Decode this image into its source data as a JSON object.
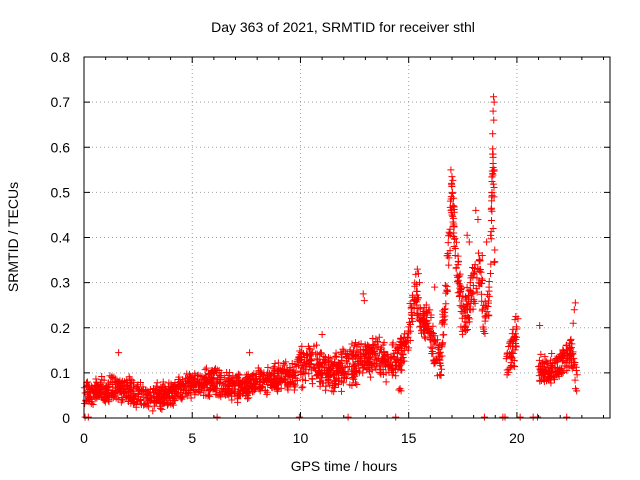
{
  "chart_data": {
    "type": "scatter",
    "title": "Day 363 of 2021, SRMTID for receiver sthl",
    "xlabel": "GPS time / hours",
    "ylabel": "SRMTID / TECUs",
    "xlim": [
      0,
      24.3
    ],
    "ylim": [
      0,
      0.8
    ],
    "xticks": [
      0,
      5,
      10,
      15,
      20
    ],
    "yticks": [
      0,
      0.1,
      0.2,
      0.3,
      0.4,
      0.5,
      0.6,
      0.7,
      0.8
    ],
    "xtick_labels": [
      "0",
      "5",
      "10",
      "15",
      "20"
    ],
    "ytick_labels": [
      "0",
      "0.1",
      "0.2",
      "0.3",
      "0.4",
      "0.5",
      "0.6",
      "0.7",
      "0.8"
    ],
    "grid": true,
    "marker": "plus",
    "color": "#ff0000",
    "series": [
      {
        "name": "SRMTID",
        "segments": [
          {
            "x": [
              0.0,
              1.0,
              2.0,
              3.0,
              4.0,
              5.0,
              6.0,
              7.0,
              8.0,
              9.0,
              9.8
            ],
            "y": [
              0.05,
              0.065,
              0.06,
              0.04,
              0.055,
              0.07,
              0.085,
              0.065,
              0.08,
              0.09,
              0.095
            ],
            "spread": 0.035
          },
          {
            "x": [
              9.8,
              10.5,
              11.0,
              11.5,
              12.0,
              12.5,
              13.0,
              13.5,
              14.0,
              14.5,
              15.0
            ],
            "y": [
              0.11,
              0.12,
              0.11,
              0.1,
              0.11,
              0.12,
              0.13,
              0.14,
              0.12,
              0.13,
              0.17
            ],
            "spread": 0.05
          },
          {
            "x": [
              15.0,
              15.3,
              15.6,
              15.9,
              16.2,
              16.5
            ],
            "y": [
              0.18,
              0.29,
              0.2,
              0.22,
              0.15,
              0.13
            ],
            "spread": 0.05
          },
          {
            "x": [
              16.5,
              16.9,
              17.0,
              17.2,
              17.5,
              17.8,
              18.0,
              18.3,
              18.5,
              18.7,
              18.8,
              18.9,
              19.0
            ],
            "y": [
              0.14,
              0.4,
              0.52,
              0.35,
              0.22,
              0.25,
              0.3,
              0.33,
              0.2,
              0.25,
              0.4,
              0.6,
              0.3
            ],
            "spread": 0.06
          },
          {
            "x": [
              19.5,
              19.8,
              20.0
            ],
            "y": [
              0.12,
              0.15,
              0.18
            ],
            "spread": 0.06
          },
          {
            "x": [
              21.0,
              21.5,
              22.0,
              22.5,
              22.8
            ],
            "y": [
              0.11,
              0.1,
              0.12,
              0.15,
              0.08
            ],
            "spread": 0.04
          }
        ],
        "highlights": [
          {
            "x": 18.92,
            "y": 0.712
          },
          {
            "x": 18.95,
            "y": 0.7
          },
          {
            "x": 18.9,
            "y": 0.68
          },
          {
            "x": 18.93,
            "y": 0.66
          },
          {
            "x": 18.88,
            "y": 0.63
          },
          {
            "x": 18.9,
            "y": 0.555
          },
          {
            "x": 18.95,
            "y": 0.55
          },
          {
            "x": 18.85,
            "y": 0.5
          },
          {
            "x": 18.9,
            "y": 0.42
          },
          {
            "x": 18.95,
            "y": 0.345
          },
          {
            "x": 16.95,
            "y": 0.55
          },
          {
            "x": 17.0,
            "y": 0.535
          },
          {
            "x": 16.98,
            "y": 0.52
          },
          {
            "x": 17.02,
            "y": 0.5
          },
          {
            "x": 17.05,
            "y": 0.47
          },
          {
            "x": 17.0,
            "y": 0.45
          },
          {
            "x": 17.08,
            "y": 0.41
          },
          {
            "x": 17.1,
            "y": 0.38
          },
          {
            "x": 17.15,
            "y": 0.36
          },
          {
            "x": 18.1,
            "y": 0.46
          },
          {
            "x": 18.2,
            "y": 0.44
          },
          {
            "x": 17.7,
            "y": 0.405
          },
          {
            "x": 17.8,
            "y": 0.39
          },
          {
            "x": 18.4,
            "y": 0.36
          },
          {
            "x": 18.6,
            "y": 0.39
          },
          {
            "x": 17.4,
            "y": 0.28
          },
          {
            "x": 17.5,
            "y": 0.27
          },
          {
            "x": 15.4,
            "y": 0.33
          },
          {
            "x": 15.45,
            "y": 0.32
          },
          {
            "x": 15.5,
            "y": 0.3
          },
          {
            "x": 16.2,
            "y": 0.29
          },
          {
            "x": 12.9,
            "y": 0.275
          },
          {
            "x": 12.95,
            "y": 0.26
          },
          {
            "x": 22.7,
            "y": 0.255
          },
          {
            "x": 22.65,
            "y": 0.24
          },
          {
            "x": 22.6,
            "y": 0.21
          },
          {
            "x": 19.95,
            "y": 0.225
          },
          {
            "x": 20.05,
            "y": 0.22
          },
          {
            "x": 21.05,
            "y": 0.205
          },
          {
            "x": 11.0,
            "y": 0.185
          },
          {
            "x": 1.6,
            "y": 0.145
          },
          {
            "x": 7.65,
            "y": 0.145
          },
          {
            "x": 14.6,
            "y": 0.065
          },
          {
            "x": 14.65,
            "y": 0.06
          },
          {
            "x": 14.55,
            "y": 0.062
          }
        ],
        "zeros": [
          0.05,
          0.2,
          6.15,
          9.95,
          12.2,
          14.4,
          18.5,
          19.35,
          19.45,
          20.15,
          20.75,
          20.95,
          22.3
        ]
      }
    ]
  }
}
